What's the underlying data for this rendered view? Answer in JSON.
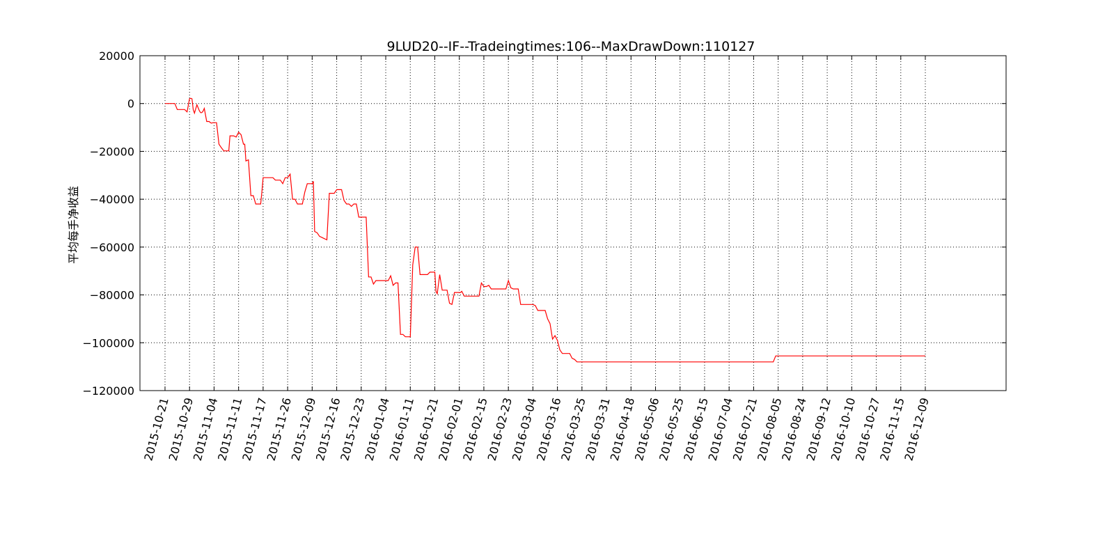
{
  "chart_data": {
    "type": "line",
    "title": "9LUD20--IF--Tradeingtimes:106--MaxDrawDown:110127",
    "xlabel": "",
    "ylabel": "平均每手净收益",
    "ylim": [
      -120000,
      20000
    ],
    "yticks": [
      20000,
      0,
      -20000,
      -40000,
      -60000,
      -80000,
      -100000,
      -120000
    ],
    "ytick_labels": [
      "20000",
      "0",
      "−20000",
      "−40000",
      "−60000",
      "−80000",
      "−100000",
      "−120000"
    ],
    "x_tick_labels": [
      "2015-10-21",
      "2015-10-29",
      "2015-11-04",
      "2015-11-11",
      "2015-11-17",
      "2015-11-26",
      "2015-12-09",
      "2015-12-16",
      "2015-12-23",
      "2016-01-04",
      "2016-01-11",
      "2016-01-21",
      "2016-02-01",
      "2016-02-15",
      "2016-02-23",
      "2016-03-04",
      "2016-03-16",
      "2016-03-25",
      "2016-03-31",
      "2016-04-18",
      "2016-05-06",
      "2016-05-25",
      "2016-06-15",
      "2016-07-04",
      "2016-07-21",
      "2016-08-05",
      "2016-08-24",
      "2016-09-12",
      "2016-10-10",
      "2016-10-27",
      "2016-11-15",
      "2016-12-09"
    ],
    "x_range_ticks": [
      0,
      34.5
    ],
    "grid": true,
    "line_color": "#ff0000",
    "series": [
      {
        "x": [
          0,
          0.4,
          0.5,
          0.6,
          0.7,
          0.8,
          0.9,
          1.0,
          1.05,
          1.1,
          1.15,
          1.2,
          1.3,
          1.4,
          1.45,
          1.5,
          1.55,
          1.6,
          1.7,
          1.8,
          1.85,
          1.9,
          1.95,
          2.0,
          2.1,
          2.2,
          2.3,
          2.4,
          2.6,
          2.65,
          2.7,
          2.8,
          2.9,
          3.0,
          3.1,
          3.2,
          3.25,
          3.3,
          3.4,
          3.5,
          3.6,
          3.7,
          3.8,
          3.9,
          3.95,
          4.0,
          4.05,
          4.1,
          4.2,
          4.3,
          4.4,
          4.5,
          4.6,
          4.7,
          4.8,
          4.9,
          5.0,
          5.1,
          5.2,
          5.3,
          5.4,
          5.5,
          5.6,
          5.7,
          5.8,
          5.9,
          6.0,
          6.05,
          6.1,
          6.2,
          6.3,
          6.4,
          6.5,
          6.6,
          6.7,
          6.75,
          6.8,
          6.9,
          7.0,
          7.05,
          7.1,
          7.2,
          7.3,
          7.4,
          7.5,
          7.6,
          7.7,
          7.8,
          7.9,
          8.0,
          8.1,
          8.2,
          8.3,
          8.4,
          8.5,
          8.6,
          8.7,
          8.8,
          8.9,
          9.0,
          9.1,
          9.2,
          9.3,
          9.4,
          9.5,
          9.6,
          9.7,
          9.8,
          9.9,
          10.0,
          10.1,
          10.2,
          10.3,
          10.4,
          10.5,
          10.6,
          10.7,
          10.8,
          10.9,
          11.0,
          11.05,
          11.1,
          11.2,
          11.3,
          11.4,
          11.5,
          11.6,
          11.7,
          11.8,
          11.9,
          12.0,
          12.05,
          12.1,
          12.2,
          12.3,
          12.4,
          12.5,
          12.6,
          12.7,
          12.8,
          12.9,
          13.0,
          13.1,
          13.2,
          13.3,
          13.4,
          13.5,
          13.6,
          13.7,
          13.8,
          13.9,
          14.0,
          14.1,
          14.2,
          14.3,
          14.4,
          14.5,
          14.6,
          14.7,
          14.8,
          14.9,
          15.0,
          15.1,
          15.2,
          15.3,
          15.4,
          15.5,
          15.6,
          15.7,
          15.8,
          15.9,
          16.0,
          16.1,
          16.2,
          16.3,
          16.4,
          16.5,
          16.6,
          16.7,
          16.8,
          16.9,
          17.0,
          17.1,
          17.2,
          17.3,
          17.4,
          17.5,
          17.6,
          17.7,
          17.8,
          17.9,
          18.0,
          18.1,
          18.2,
          18.3,
          19.0,
          20.0,
          21.0,
          22.0,
          23.0,
          24.0,
          24.8,
          24.9,
          25.0,
          26.0,
          27.0,
          28.0,
          29.0,
          30.0,
          31.0
        ],
        "y": [
          0,
          0,
          -2500,
          -2500,
          -2500,
          -2500,
          -3500,
          2000,
          2200,
          2000,
          -2500,
          -4000,
          -500,
          -3000,
          -3800,
          -3800,
          -3200,
          -2000,
          -7500,
          -7500,
          -8000,
          -8200,
          -8000,
          -8000,
          -8000,
          -17000,
          -18500,
          -19800,
          -19800,
          -13500,
          -13500,
          -13500,
          -14000,
          -12000,
          -13000,
          -17000,
          -17000,
          -24000,
          -23500,
          -38500,
          -38500,
          -42000,
          -42000,
          -42000,
          -37000,
          -31000,
          -31000,
          -31000,
          -31000,
          -31000,
          -31000,
          -32000,
          -32000,
          -32000,
          -33500,
          -31000,
          -31000,
          -29500,
          -40000,
          -40000,
          -42000,
          -42000,
          -42000,
          -37000,
          -33500,
          -33500,
          -33500,
          -32500,
          -53500,
          -54000,
          -55500,
          -56000,
          -56500,
          -57000,
          -37500,
          -37500,
          -37500,
          -37500,
          -36000,
          -36000,
          -36000,
          -36000,
          -40500,
          -42000,
          -42000,
          -43000,
          -42000,
          -42000,
          -47500,
          -47500,
          -47500,
          -47500,
          -72500,
          -72500,
          -75500,
          -74000,
          -74000,
          -74000,
          -74000,
          -74000,
          -74000,
          -72000,
          -76000,
          -75000,
          -75000,
          -96500,
          -96500,
          -97500,
          -97500,
          -97500,
          -67500,
          -60000,
          -60000,
          -71500,
          -71500,
          -71500,
          -71500,
          -70500,
          -70500,
          -70500,
          -78500,
          -79500,
          -71500,
          -78000,
          -78000,
          -78000,
          -83500,
          -84000,
          -79000,
          -79000,
          -79000,
          -79000,
          -78500,
          -80500,
          -80500,
          -80500,
          -80500,
          -80500,
          -80500,
          -80500,
          -75000,
          -76500,
          -76500,
          -76000,
          -77500,
          -77500,
          -77500,
          -77500,
          -77500,
          -77500,
          -77500,
          -74000,
          -77000,
          -77500,
          -77500,
          -77500,
          -84000,
          -84000,
          -84000,
          -84000,
          -84000,
          -84000,
          -84500,
          -86500,
          -86500,
          -86500,
          -86500,
          -90000,
          -92000,
          -98500,
          -97000,
          -99000,
          -103000,
          -104500,
          -104500,
          -104500,
          -104500,
          -106500,
          -107000,
          -108000,
          -108000,
          -108000,
          -108000,
          -108000,
          -108000,
          -108000,
          -108000,
          -108000,
          -108000,
          -108000,
          -108000,
          -108000,
          -108000,
          -108000,
          -108000,
          -108000,
          -108000,
          -108000,
          -108000,
          -108000,
          -108000,
          -108000,
          -105500,
          -105500,
          -105500,
          -105500,
          -105500,
          -105500,
          -105500,
          -105500
        ]
      }
    ]
  }
}
